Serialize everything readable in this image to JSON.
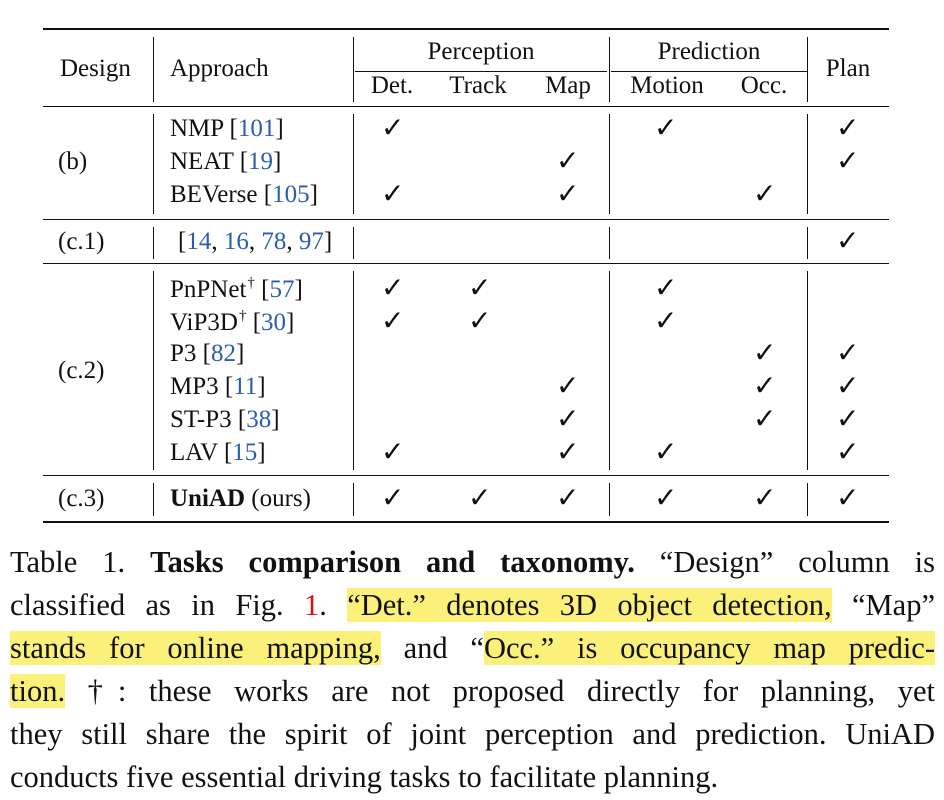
{
  "table": {
    "headers": {
      "design": "Design",
      "approach": "Approach",
      "perception": "Perception",
      "det": "Det.",
      "track": "Track",
      "map": "Map",
      "prediction": "Prediction",
      "motion": "Motion",
      "occ": "Occ.",
      "plan": "Plan"
    },
    "check_glyph": "✓",
    "groups": [
      {
        "design": "(b)",
        "rows": [
          {
            "name": "NMP",
            "ref": "101",
            "sup": "",
            "checks": [
              1,
              0,
              0,
              1,
              0,
              1
            ]
          },
          {
            "name": "NEAT",
            "ref": "19",
            "sup": "",
            "checks": [
              0,
              0,
              1,
              0,
              0,
              1
            ]
          },
          {
            "name": "BEVerse",
            "ref": "105",
            "sup": "",
            "checks": [
              1,
              0,
              1,
              0,
              1,
              0
            ]
          }
        ]
      },
      {
        "design": "(c.1)",
        "rows": [
          {
            "name": "",
            "ref": "14, 16, 78, 97",
            "sup": "",
            "checks": [
              0,
              0,
              0,
              0,
              0,
              1
            ]
          }
        ]
      },
      {
        "design": "(c.2)",
        "rows": [
          {
            "name": "PnPNet",
            "ref": "57",
            "sup": "†",
            "checks": [
              1,
              1,
              0,
              1,
              0,
              0
            ]
          },
          {
            "name": "ViP3D",
            "ref": "30",
            "sup": "†",
            "checks": [
              1,
              1,
              0,
              1,
              0,
              0
            ]
          },
          {
            "name": "P3",
            "ref": "82",
            "sup": "",
            "checks": [
              0,
              0,
              0,
              0,
              1,
              1
            ]
          },
          {
            "name": "MP3",
            "ref": "11",
            "sup": "",
            "checks": [
              0,
              0,
              1,
              0,
              1,
              1
            ]
          },
          {
            "name": "ST-P3",
            "ref": "38",
            "sup": "",
            "checks": [
              0,
              0,
              1,
              0,
              1,
              1
            ]
          },
          {
            "name": "LAV",
            "ref": "15",
            "sup": "",
            "checks": [
              1,
              0,
              1,
              1,
              0,
              1
            ]
          }
        ]
      },
      {
        "design": "(c.3)",
        "rows": [
          {
            "name": "UniAD",
            "ref": "",
            "sup": "",
            "suffix": "(ours)",
            "bold": true,
            "checks": [
              1,
              1,
              1,
              1,
              1,
              1
            ]
          }
        ]
      }
    ]
  },
  "caption": {
    "table_label": "Table 1.",
    "bold_title": "Tasks comparison and taxonomy.",
    "l1_rest": "“Design” column is",
    "l2_a": "classified as in Fig.",
    "fig_ref": "1",
    "l2_b": ".",
    "l2_hl": "“Det.” denotes 3D object detection,",
    "l2_c": "“Map”",
    "l3_hl": "stands for online mapping,",
    "l3_a": "and “",
    "l3_hl2": "Occ.” is occupancy map predic-",
    "l4_hl": "tion.",
    "l4_rest": "†: these works are not proposed directly for planning, yet",
    "l5": "they still share the spirit of joint perception and prediction. UniAD",
    "l6": "conducts five essential driving tasks to facilitate planning."
  }
}
